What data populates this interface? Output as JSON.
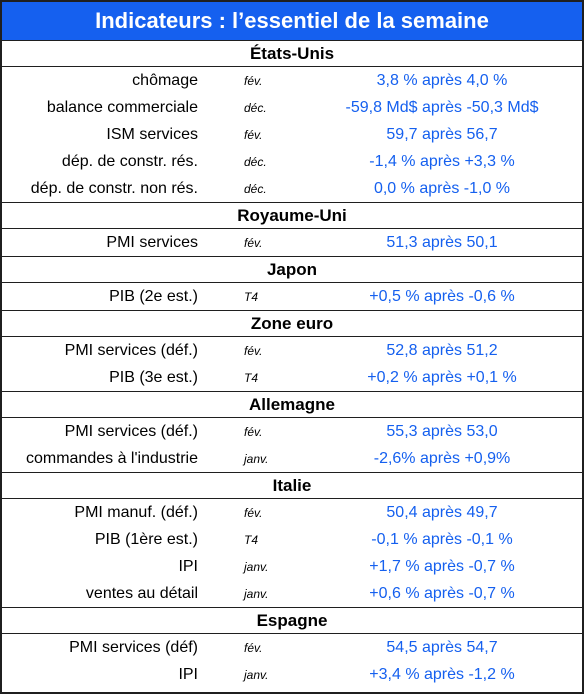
{
  "title": "Indicateurs : l’essentiel de la semaine",
  "sections": [
    {
      "name": "États-Unis",
      "rows": [
        {
          "label": "chômage",
          "period": "fév.",
          "value": "3,8 % après 4,0 %"
        },
        {
          "label": "balance commerciale",
          "period": "déc.",
          "value": "-59,8 Md$ après -50,3 Md$"
        },
        {
          "label": "ISM services",
          "period": "fév.",
          "value": "59,7 après 56,7"
        },
        {
          "label": "dép. de constr. rés.",
          "period": "déc.",
          "value": "-1,4 % après +3,3 %"
        },
        {
          "label": "dép. de constr. non rés.",
          "period": "déc.",
          "value": "0,0 % après -1,0 %"
        }
      ]
    },
    {
      "name": "Royaume-Uni",
      "rows": [
        {
          "label": "PMI services",
          "period": "fév.",
          "value": "51,3 après 50,1"
        }
      ]
    },
    {
      "name": "Japon",
      "rows": [
        {
          "label": "PIB (2e est.)",
          "period": "T4",
          "value": "+0,5 % après -0,6 %"
        }
      ]
    },
    {
      "name": "Zone euro",
      "rows": [
        {
          "label": "PMI services (déf.)",
          "period": "fév.",
          "value": "52,8 après 51,2"
        },
        {
          "label": "PIB (3e est.)",
          "period": "T4",
          "value": "+0,2 % après +0,1 %"
        }
      ]
    },
    {
      "name": "Allemagne",
      "rows": [
        {
          "label": "PMI services (déf.)",
          "period": "fév.",
          "value": "55,3 après 53,0"
        },
        {
          "label": "commandes à l'industrie",
          "period": "janv.",
          "value": "-2,6% après +0,9%"
        }
      ]
    },
    {
      "name": "Italie",
      "rows": [
        {
          "label": "PMI manuf. (déf.)",
          "period": "fév.",
          "value": "50,4 après 49,7"
        },
        {
          "label": "PIB (1ère est.)",
          "period": "T4",
          "value": "-0,1 % après -0,1 %"
        },
        {
          "label": "IPI",
          "period": "janv.",
          "value": "+1,7 % après -0,7 %"
        },
        {
          "label": "ventes au détail",
          "period": "janv.",
          "value": "+0,6 % après -0,7 %"
        }
      ]
    },
    {
      "name": "Espagne",
      "rows": [
        {
          "label": "PMI services (déf)",
          "period": "fév.",
          "value": "54,5 après 54,7"
        },
        {
          "label": "IPI",
          "period": "janv.",
          "value": "+3,4 % après -1,2 %"
        }
      ]
    }
  ],
  "colors": {
    "accent": "#1560ef",
    "value_text": "#1560ef",
    "border": "#1f1f1f"
  }
}
